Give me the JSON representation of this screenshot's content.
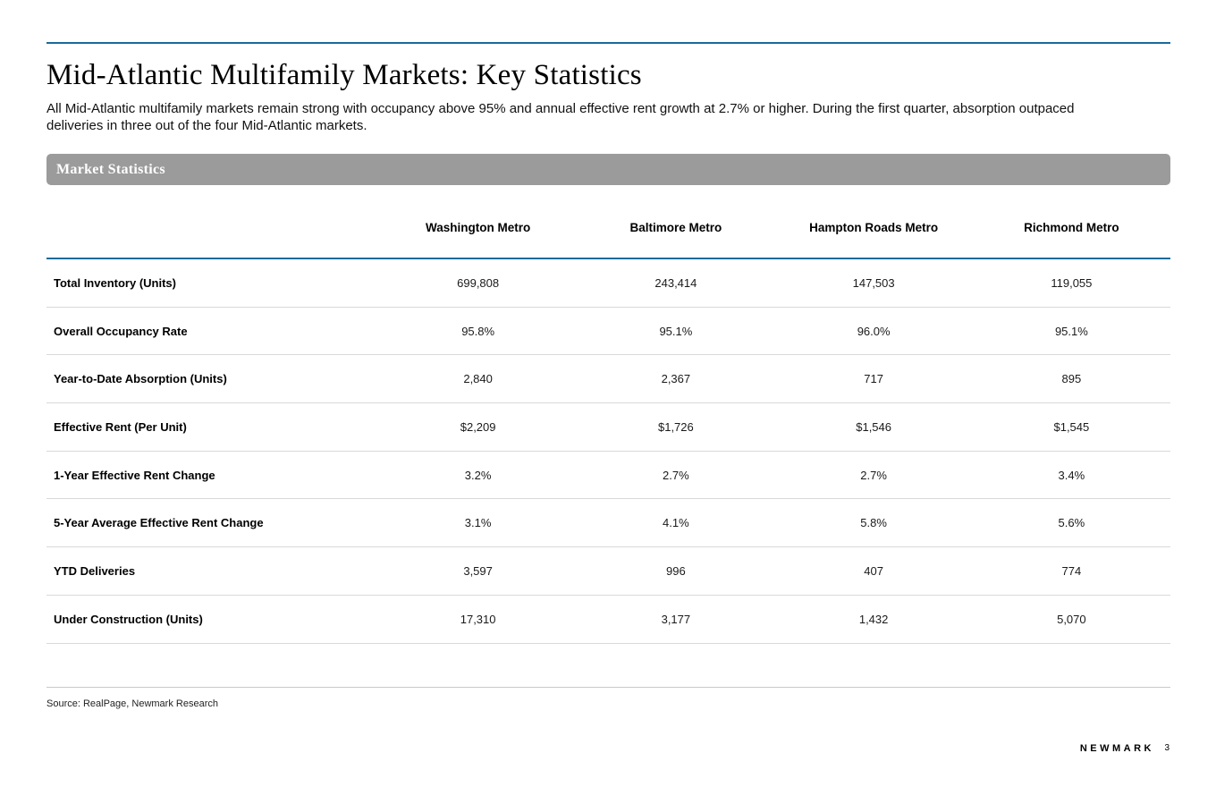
{
  "header": {
    "title": "Mid-Atlantic Multifamily Markets: Key Statistics",
    "subtitle": "All Mid-Atlantic multifamily markets remain strong with occupancy above 95% and annual effective rent growth at 2.7% or higher. During the first quarter, absorption outpaced deliveries in three out of the four Mid-Atlantic markets."
  },
  "section": {
    "header": "Market Statistics"
  },
  "table": {
    "columns": [
      "Washington Metro",
      "Baltimore Metro",
      "Hampton Roads Metro",
      "Richmond Metro"
    ],
    "rows": [
      {
        "label": "Total Inventory (Units)",
        "values": [
          "699,808",
          "243,414",
          "147,503",
          "119,055"
        ]
      },
      {
        "label": "Overall Occupancy Rate",
        "values": [
          "95.8%",
          "95.1%",
          "96.0%",
          "95.1%"
        ]
      },
      {
        "label": "Year-to-Date Absorption (Units)",
        "values": [
          "2,840",
          "2,367",
          "717",
          "895"
        ]
      },
      {
        "label": "Effective Rent (Per Unit)",
        "values": [
          "$2,209",
          "$1,726",
          "$1,546",
          "$1,545"
        ]
      },
      {
        "label": "1-Year Effective Rent Change",
        "values": [
          "3.2%",
          "2.7%",
          "2.7%",
          "3.4%"
        ]
      },
      {
        "label": "5-Year Average Effective Rent Change",
        "values": [
          "3.1%",
          "4.1%",
          "5.8%",
          "5.6%"
        ]
      },
      {
        "label": "YTD Deliveries",
        "values": [
          "3,597",
          "996",
          "407",
          "774"
        ]
      },
      {
        "label": "Under Construction (Units)",
        "values": [
          "17,310",
          "3,177",
          "1,432",
          "5,070"
        ]
      }
    ]
  },
  "footer": {
    "source": "Source: RealPage, Newmark Research",
    "brand": "NEWMARK",
    "page_number": "3"
  },
  "colors": {
    "accent_blue": "#1b6a9b",
    "section_bar_gray": "#9b9b9b",
    "row_divider": "#d9d9d9"
  }
}
